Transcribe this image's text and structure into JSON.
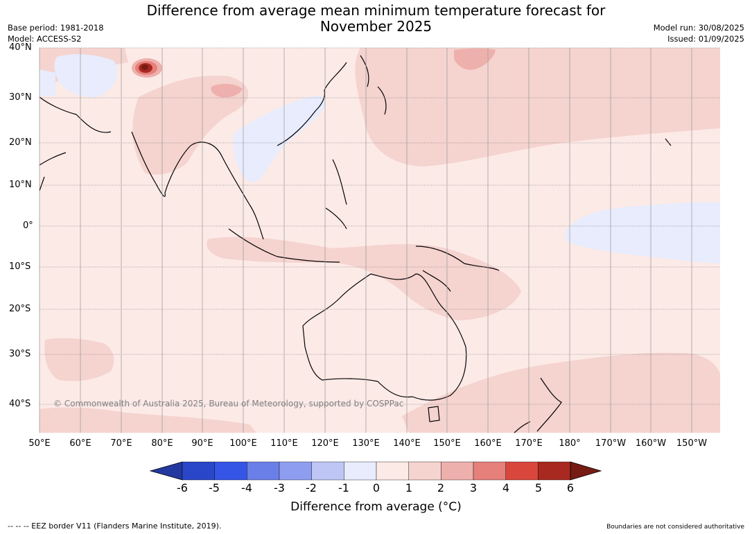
{
  "title_line1": "Difference from average mean minimum temperature forecast for",
  "title_line2": "November 2025",
  "base_period": "Base period: 1981-2018",
  "model": "Model: ACCESS-S2",
  "model_run": "Model run: 30/08/2025",
  "issued": "Issued: 01/09/2025",
  "copyright": "© Commonwealth of Australia 2025, Bureau of Meteorology, supported by COSPPac",
  "lat_labels": [
    "40°N",
    "30°N",
    "20°N",
    "10°N",
    "0°",
    "10°S",
    "20°S",
    "30°S",
    "40°S"
  ],
  "lon_labels": [
    "50°E",
    "60°E",
    "70°E",
    "80°E",
    "90°E",
    "100°E",
    "110°E",
    "120°E",
    "130°E",
    "140°E",
    "150°E",
    "160°E",
    "170°E",
    "180°",
    "170°W",
    "160°W",
    "150°W"
  ],
  "colorbar": {
    "ticks": [
      "-6",
      "-5",
      "-4",
      "-3",
      "-2",
      "-1",
      "0",
      "1",
      "2",
      "3",
      "4",
      "5",
      "6"
    ],
    "colors": [
      "#23399f",
      "#2a46c9",
      "#3555e6",
      "#6b7fe8",
      "#8e9df0",
      "#bdc6f5",
      "#e8ecfc",
      "#fceae7",
      "#f5d3cf",
      "#eeb0ac",
      "#e6807a",
      "#d9463c",
      "#a8291f",
      "#761c15"
    ],
    "label": "Difference from average (°C)"
  },
  "footer_left": "--  --  -- EEZ border V11 (Flanders Marine Institute, 2019).",
  "footer_right": "Boundaries are not considered authoritative"
}
